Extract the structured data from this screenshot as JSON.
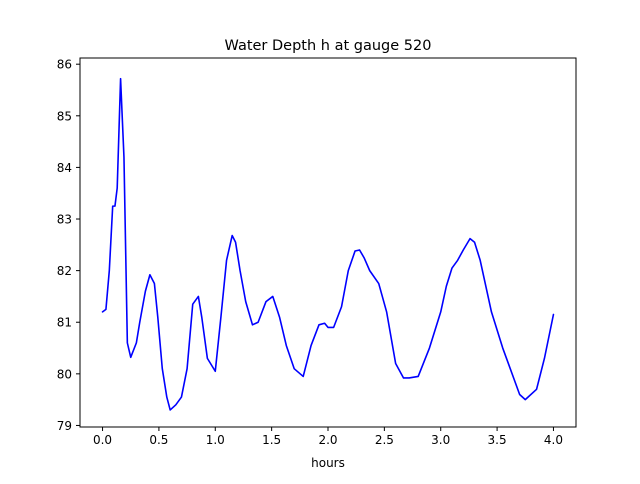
{
  "chart_data": {
    "type": "line",
    "title": "Water Depth h at gauge 520",
    "xlabel": "hours",
    "ylabel": "",
    "xlim": [
      -0.2,
      4.2
    ],
    "ylim": [
      78.97,
      86.12
    ],
    "xticks": [
      0.0,
      0.5,
      1.0,
      1.5,
      2.0,
      2.5,
      3.0,
      3.5,
      4.0
    ],
    "xtick_labels": [
      "0.0",
      "0.5",
      "1.0",
      "1.5",
      "2.0",
      "2.5",
      "3.0",
      "3.5",
      "4.0"
    ],
    "yticks": [
      79,
      80,
      81,
      82,
      83,
      84,
      85,
      86
    ],
    "ytick_labels": [
      "79",
      "80",
      "81",
      "82",
      "83",
      "84",
      "85",
      "86"
    ],
    "grid": false,
    "series": [
      {
        "color": "#0000ff",
        "x": [
          0.0,
          0.03,
          0.06,
          0.09,
          0.11,
          0.13,
          0.16,
          0.19,
          0.22,
          0.25,
          0.3,
          0.33,
          0.38,
          0.42,
          0.46,
          0.49,
          0.53,
          0.57,
          0.6,
          0.65,
          0.7,
          0.75,
          0.8,
          0.85,
          0.88,
          0.93,
          1.0,
          1.05,
          1.1,
          1.15,
          1.18,
          1.22,
          1.27,
          1.33,
          1.38,
          1.45,
          1.51,
          1.57,
          1.63,
          1.7,
          1.78,
          1.85,
          1.92,
          1.97,
          2.0,
          2.05,
          2.12,
          2.18,
          2.24,
          2.28,
          2.32,
          2.37,
          2.45,
          2.52,
          2.6,
          2.67,
          2.72,
          2.8,
          2.9,
          3.0,
          3.05,
          3.1,
          3.15,
          3.2,
          3.26,
          3.3,
          3.35,
          3.45,
          3.55,
          3.65,
          3.7,
          3.75,
          3.85,
          3.92,
          4.0
        ],
        "y": [
          81.2,
          81.25,
          82.0,
          83.25,
          83.25,
          83.6,
          85.72,
          84.2,
          80.6,
          80.32,
          80.6,
          81.0,
          81.6,
          81.92,
          81.75,
          81.1,
          80.1,
          79.55,
          79.3,
          79.4,
          79.55,
          80.1,
          81.35,
          81.5,
          81.1,
          80.3,
          80.05,
          81.1,
          82.2,
          82.68,
          82.55,
          82.0,
          81.4,
          80.95,
          81.0,
          81.4,
          81.5,
          81.1,
          80.55,
          80.1,
          79.95,
          80.55,
          80.95,
          80.98,
          80.9,
          80.9,
          81.3,
          82.0,
          82.38,
          82.4,
          82.25,
          82.0,
          81.75,
          81.2,
          80.2,
          79.92,
          79.92,
          79.95,
          80.5,
          81.2,
          81.7,
          82.05,
          82.2,
          82.4,
          82.62,
          82.55,
          82.2,
          81.2,
          80.5,
          79.9,
          79.6,
          79.5,
          79.7,
          80.3,
          81.15
        ]
      }
    ]
  }
}
